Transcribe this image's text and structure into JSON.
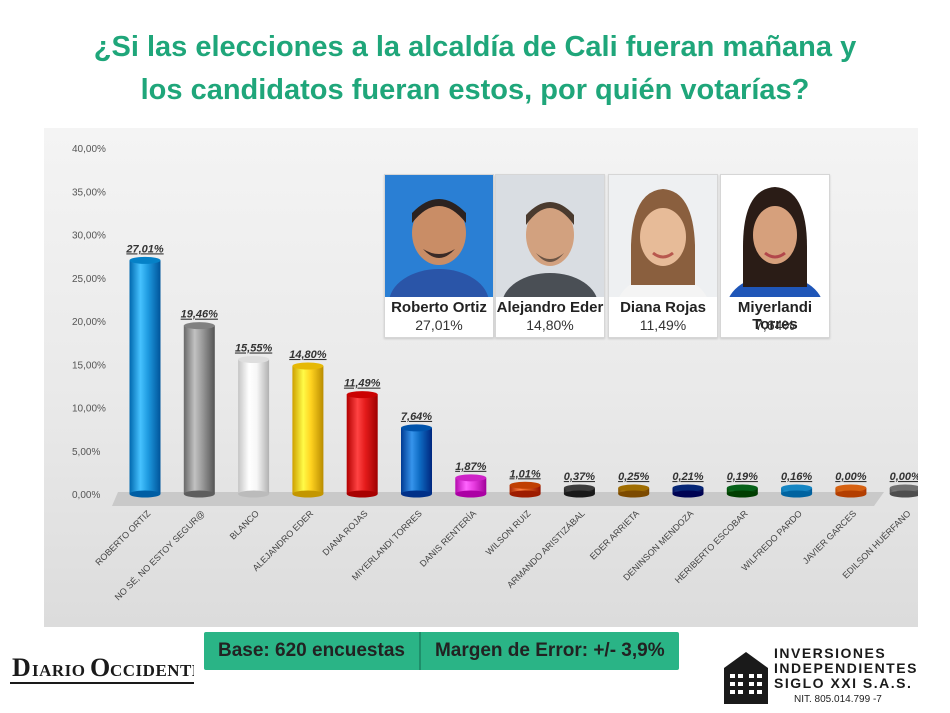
{
  "headline": {
    "line1": "¿Si las elecciones a la alcaldía de Cali fueran mañana y",
    "line2": "los candidatos fueran estos, por quién votarías?"
  },
  "chart_data": {
    "type": "bar",
    "categories": [
      "ROBERTO ORTIZ",
      "NO SÉ, NO ESTOY SEGUR@",
      "BLANCO",
      "ALEJANDRO EDER",
      "DIANA ROJAS",
      "MIYERLANDI TORRES",
      "DANIS RENTERÍA",
      "WILSON RUIZ",
      "ARMANDO ARISTIZÁBAL",
      "EDER ARRIETA",
      "DENINSON MENDOZA",
      "HERIBERTO ESCOBAR",
      "WILFREDO PARDO",
      "JAVIER GARCES",
      "EDILSON HUÉRFANO"
    ],
    "values": [
      27.01,
      19.46,
      15.55,
      14.8,
      11.49,
      7.64,
      1.87,
      1.01,
      0.37,
      0.25,
      0.21,
      0.19,
      0.16,
      0.0,
      0.0
    ],
    "value_labels": [
      "27,01%",
      "19,46%",
      "15,55%",
      "14,80%",
      "11,49%",
      "7,64%",
      "1,87%",
      "1,01%",
      "0,37%",
      "0,25%",
      "0,21%",
      "0,19%",
      "0,16%",
      "0,00%",
      "0,00%"
    ],
    "colors": [
      "#1e9ae0",
      "#9a9a9a",
      "#f7f7f7",
      "#ffd21f",
      "#e41b1b",
      "#0e6cc4",
      "#e73ce0",
      "#d9581a",
      "#555555",
      "#b8861a",
      "#1f3f8f",
      "#1f7a32",
      "#2f9fdc",
      "#ef7a2a",
      "#8a8a8a"
    ],
    "ylim": [
      0,
      40
    ],
    "yticks": [
      0,
      5,
      10,
      15,
      20,
      25,
      30,
      35,
      40
    ],
    "ytick_labels": [
      "0,00%",
      "5,00%",
      "10,00%",
      "15,00%",
      "20,00%",
      "25,00%",
      "30,00%",
      "35,00%",
      "40,00%"
    ],
    "grid": false,
    "legend": "none"
  },
  "candidates": [
    {
      "name": "Roberto Ortiz",
      "pct": "27,01%"
    },
    {
      "name": "Alejandro Eder",
      "pct": "14,80%"
    },
    {
      "name": "Diana Rojas",
      "pct": "11,49%"
    },
    {
      "name": "Miyerlandi Torres",
      "pct": "7,64%"
    }
  ],
  "footer": {
    "base": "Base: 620 encuestas",
    "margin": "Margen de Error: +/- 3,9%"
  },
  "brand_left": {
    "logo_text": "DIARIO OCCIDENTE"
  },
  "brand_right": {
    "line1": "INVERSIONES",
    "line2": "INDEPENDIENTES",
    "line3": "SIGLO XXI S.A.S.",
    "nit": "NIT. 805.014.799 -7"
  }
}
